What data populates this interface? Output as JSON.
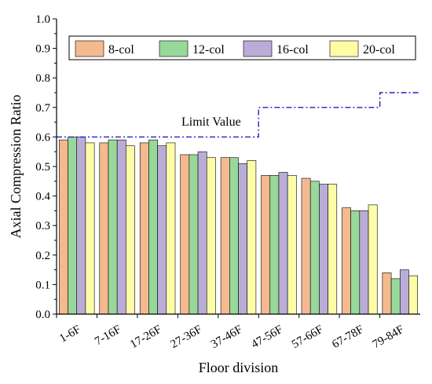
{
  "chart_data": {
    "type": "bar",
    "xlabel": "Floor division",
    "ylabel": "Axial Compression Ratio",
    "ylim": [
      0.0,
      1.0
    ],
    "yticks": [
      "0.0",
      "0.1",
      "0.2",
      "0.3",
      "0.4",
      "0.5",
      "0.6",
      "0.7",
      "0.8",
      "0.9",
      "1.0"
    ],
    "categories": [
      "1-6F",
      "7-16F",
      "17-26F",
      "27-36F",
      "37-46F",
      "47-56F",
      "57-66F",
      "67-78F",
      "79-84F"
    ],
    "series": [
      {
        "name": "8-col",
        "color": "#f5b98f",
        "values": [
          0.59,
          0.58,
          0.58,
          0.54,
          0.53,
          0.47,
          0.46,
          0.36,
          0.14
        ]
      },
      {
        "name": "12-col",
        "color": "#98d89a",
        "values": [
          0.6,
          0.59,
          0.59,
          0.54,
          0.53,
          0.47,
          0.45,
          0.35,
          0.12
        ]
      },
      {
        "name": "16-col",
        "color": "#b9add8",
        "values": [
          0.6,
          0.59,
          0.57,
          0.55,
          0.51,
          0.48,
          0.44,
          0.35,
          0.15
        ]
      },
      {
        "name": "20-col",
        "color": "#fdfda8",
        "values": [
          0.58,
          0.57,
          0.58,
          0.53,
          0.52,
          0.47,
          0.44,
          0.37,
          0.13
        ]
      }
    ],
    "limit_line": {
      "label": "Limit Value",
      "color": "#1f1fbf",
      "steps": [
        {
          "from_category": 0,
          "to_category": 4,
          "value": 0.6
        },
        {
          "from_category": 5,
          "to_category": 7,
          "value": 0.7
        },
        {
          "from_category": 8,
          "to_category": 8,
          "value": 0.75
        }
      ]
    },
    "legend_position": "top"
  }
}
